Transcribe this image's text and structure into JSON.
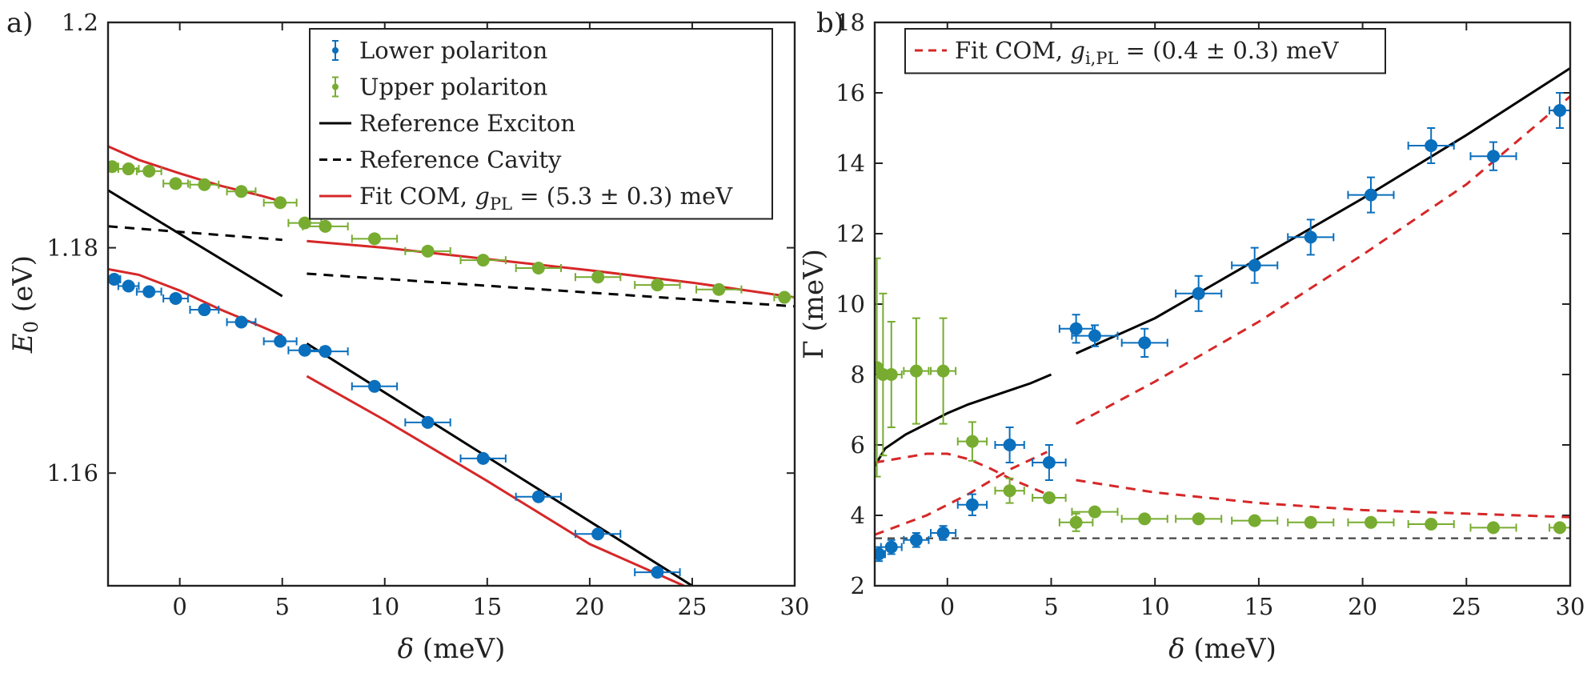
{
  "colors": {
    "lower": "#0a6fbd",
    "upper": "#77ac30",
    "exciton": "#000000",
    "cavity": "#000000",
    "fit": "#d62728",
    "frame": "#222222"
  },
  "chart_data": [
    {
      "type": "scatter",
      "panel": "a)",
      "xlabel": "δ (meV)",
      "ylabel": "E0 (eV)",
      "xlim": [
        -3.5,
        30
      ],
      "ylim": [
        1.15,
        1.2
      ],
      "xticks": [
        0,
        5,
        10,
        15,
        20,
        25,
        30
      ],
      "xtick_labels": [
        "0",
        "5",
        "10",
        "15",
        "20",
        "25",
        "30"
      ],
      "yticks": [
        1.16,
        1.18,
        1.2
      ],
      "ytick_labels": [
        "1.16",
        "1.18",
        "1.2"
      ],
      "legend": {
        "position": "top-right",
        "entries": [
          {
            "label": "Lower polariton",
            "series": "lower"
          },
          {
            "label": "Upper polariton",
            "series": "upper"
          },
          {
            "label": "Reference Exciton",
            "series": "exciton"
          },
          {
            "label": "Reference Cavity",
            "series": "cavity"
          },
          {
            "label": "Fit COM, gPL = (5.3 ± 0.3) meV",
            "series": "fit"
          }
        ]
      },
      "points": [
        {
          "name": "lower",
          "label": "Lower polariton",
          "x": [
            -3.2,
            -2.5,
            -1.5,
            -0.2,
            1.2,
            3.0,
            4.9,
            6.1,
            7.1,
            9.5,
            12.1,
            14.8,
            17.5,
            20.4,
            23.3
          ],
          "y": [
            1.1772,
            1.1766,
            1.1761,
            1.1755,
            1.1745,
            1.1734,
            1.1717,
            1.1709,
            1.1708,
            1.1677,
            1.1645,
            1.1613,
            1.1579,
            1.1546,
            1.1512
          ],
          "xerr": [
            0.3,
            0.5,
            0.6,
            0.6,
            0.7,
            0.7,
            0.8,
            0.8,
            1.1,
            1.1,
            1.1,
            1.1,
            1.1,
            1.1,
            1.1
          ]
        },
        {
          "name": "upper",
          "label": "Upper polariton",
          "x": [
            -3.3,
            -2.5,
            -1.5,
            -0.2,
            1.2,
            3.0,
            4.9,
            6.1,
            7.1,
            9.5,
            12.1,
            14.8,
            17.5,
            20.4,
            23.3,
            26.3,
            29.5
          ],
          "y": [
            1.1872,
            1.187,
            1.1868,
            1.1857,
            1.1856,
            1.185,
            1.184,
            1.1822,
            1.1819,
            1.1808,
            1.1797,
            1.1789,
            1.1782,
            1.1774,
            1.1767,
            1.1763,
            1.1756
          ],
          "xerr": [
            0.3,
            0.5,
            0.6,
            0.6,
            0.7,
            0.7,
            0.8,
            0.8,
            1.1,
            1.1,
            1.1,
            1.1,
            1.1,
            1.1,
            1.1,
            1.1,
            0.5
          ]
        }
      ],
      "lines": [
        {
          "name": "exciton",
          "style": "solid",
          "segments": [
            {
              "x": [
                -3.5,
                5.0
              ],
              "y": [
                1.1851,
                1.1757
              ]
            },
            {
              "x": [
                6.2,
                25.0
              ],
              "y": [
                1.1715,
                1.15
              ]
            }
          ]
        },
        {
          "name": "cavity",
          "style": "dashed",
          "segments": [
            {
              "x": [
                -3.5,
                5.0
              ],
              "y": [
                1.1819,
                1.1807
              ]
            },
            {
              "x": [
                6.2,
                30.0
              ],
              "y": [
                1.1777,
                1.1748
              ]
            }
          ]
        },
        {
          "name": "fit",
          "style": "solid",
          "segments": [
            {
              "x": [
                -3.5,
                -2,
                0,
                2,
                4,
                5
              ],
              "y": [
                1.189,
                1.1878,
                1.1866,
                1.1855,
                1.1846,
                1.1841
              ]
            },
            {
              "x": [
                6.2,
                10,
                15,
                20,
                25,
                30
              ],
              "y": [
                1.1806,
                1.18,
                1.179,
                1.178,
                1.1769,
                1.1756
              ]
            },
            {
              "x": [
                -3.5,
                -2,
                0,
                2,
                4,
                5
              ],
              "y": [
                1.1781,
                1.1776,
                1.1762,
                1.1745,
                1.173,
                1.1722
              ]
            },
            {
              "x": [
                6.2,
                10,
                15,
                20,
                24.6
              ],
              "y": [
                1.1686,
                1.1647,
                1.1593,
                1.1537,
                1.15
              ]
            }
          ]
        }
      ]
    },
    {
      "type": "scatter",
      "panel": "b)",
      "xlabel": "δ (meV)",
      "ylabel": "Γ (meV)",
      "xlim": [
        -3.5,
        30
      ],
      "ylim": [
        2,
        18
      ],
      "xticks": [
        0,
        5,
        10,
        15,
        20,
        25,
        30
      ],
      "xtick_labels": [
        "0",
        "5",
        "10",
        "15",
        "20",
        "25",
        "30"
      ],
      "yticks": [
        2,
        4,
        6,
        8,
        10,
        12,
        14,
        16,
        18
      ],
      "ytick_labels": [
        "2",
        "4",
        "6",
        "8",
        "10",
        "12",
        "14",
        "16",
        "18"
      ],
      "legend": {
        "position": "top-left",
        "entries": [
          {
            "label": "Fit COM, gi,PL = (0.4 ± 0.3) meV",
            "series": "fit"
          }
        ]
      },
      "points": [
        {
          "name": "lower",
          "label": "Lower polariton",
          "x": [
            -3.3,
            -2.7,
            -1.5,
            -0.2,
            1.2,
            3.0,
            4.9,
            6.2,
            7.1,
            9.5,
            12.1,
            14.8,
            17.5,
            20.4,
            23.3,
            26.3,
            29.5
          ],
          "y": [
            2.9,
            3.1,
            3.3,
            3.5,
            4.3,
            6.0,
            5.5,
            9.3,
            9.1,
            8.9,
            10.3,
            11.1,
            11.9,
            13.1,
            14.5,
            14.2,
            15.5
          ],
          "xerr": [
            0.3,
            0.5,
            0.6,
            0.6,
            0.7,
            0.7,
            0.8,
            0.8,
            1.1,
            1.1,
            1.1,
            1.1,
            1.1,
            1.1,
            1.1,
            1.1,
            0.5
          ],
          "yerr": [
            0.2,
            0.2,
            0.2,
            0.2,
            0.3,
            0.5,
            0.5,
            0.4,
            0.3,
            0.4,
            0.5,
            0.5,
            0.5,
            0.5,
            0.5,
            0.4,
            0.5
          ]
        },
        {
          "name": "upper",
          "label": "Upper polariton",
          "x": [
            -3.4,
            -3.1,
            -2.7,
            -1.5,
            -0.2,
            1.2,
            3.0,
            4.9,
            6.2,
            7.1,
            9.5,
            12.1,
            14.8,
            17.5,
            20.4,
            23.3,
            26.3,
            29.5
          ],
          "y": [
            8.2,
            8.0,
            8.0,
            8.1,
            8.1,
            6.1,
            4.7,
            4.5,
            3.8,
            4.1,
            3.9,
            3.9,
            3.85,
            3.8,
            3.8,
            3.75,
            3.65,
            3.65
          ],
          "xerr": [
            0.2,
            0.3,
            0.5,
            0.6,
            0.6,
            0.7,
            0.7,
            0.8,
            0.8,
            1.1,
            1.1,
            1.1,
            1.1,
            1.1,
            1.1,
            1.1,
            1.1,
            0.5
          ],
          "yerr": [
            3.1,
            2.3,
            1.5,
            1.5,
            1.5,
            0.55,
            0.35,
            0.1,
            0.25,
            0.1,
            0.1,
            0.1,
            0.1,
            0.1,
            0.1,
            0.1,
            0.1,
            0.1
          ]
        }
      ],
      "lines": [
        {
          "name": "exciton",
          "style": "solid",
          "segments": [
            {
              "x": [
                -3.5,
                -3,
                -2,
                -1,
                0,
                1,
                2,
                3,
                4,
                5
              ],
              "y": [
                5.4,
                5.9,
                6.3,
                6.6,
                6.9,
                7.15,
                7.35,
                7.55,
                7.75,
                8.0
              ]
            },
            {
              "x": [
                6.2,
                10,
                15,
                20,
                25,
                30
              ],
              "y": [
                8.6,
                9.6,
                11.3,
                13.0,
                14.8,
                16.7
              ]
            }
          ]
        },
        {
          "name": "cavity",
          "style": "dashed",
          "segments": [
            {
              "x": [
                -3.5,
                30
              ],
              "y": [
                3.35,
                3.35
              ]
            }
          ]
        },
        {
          "name": "fit",
          "style": "dashed",
          "segments": [
            {
              "x": [
                -3.5,
                -1,
                0,
                1,
                2,
                3,
                4,
                4.8
              ],
              "y": [
                5.5,
                5.75,
                5.75,
                5.6,
                5.35,
                5.05,
                4.8,
                4.6
              ]
            },
            {
              "x": [
                -3.5,
                -1,
                1,
                3,
                4.8
              ],
              "y": [
                3.45,
                4.0,
                4.6,
                5.3,
                5.8
              ]
            },
            {
              "x": [
                6.2,
                10,
                15,
                20,
                25,
                30
              ],
              "y": [
                6.6,
                7.8,
                9.5,
                11.4,
                13.4,
                15.9
              ]
            },
            {
              "x": [
                6.2,
                10,
                15,
                20,
                25,
                30
              ],
              "y": [
                5.0,
                4.65,
                4.35,
                4.15,
                4.05,
                3.95
              ]
            }
          ]
        }
      ]
    }
  ]
}
